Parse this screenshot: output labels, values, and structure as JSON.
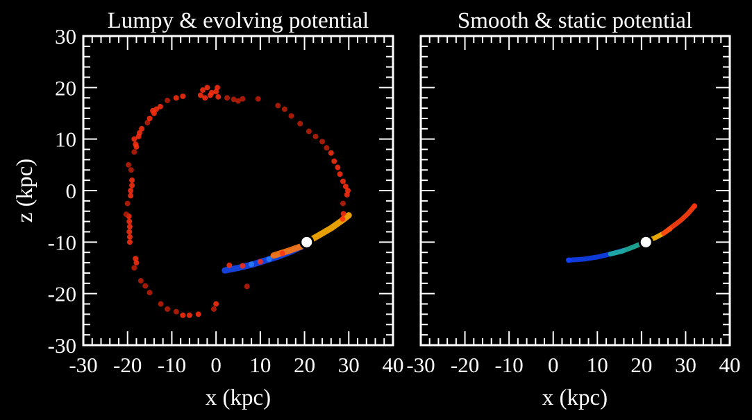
{
  "chart_data": [
    {
      "type": "scatter",
      "title": "Lumpy & evolving potential",
      "xlabel": "x (kpc)",
      "ylabel": "z (kpc)",
      "xlim": [
        -30,
        40
      ],
      "ylim": [
        -30,
        30
      ],
      "xticks": [
        "-30",
        "-20",
        "-10",
        "0",
        "10",
        "20",
        "30",
        "40"
      ],
      "yticks": [
        "30",
        "20",
        "10",
        "0",
        "-10",
        "-20",
        "-30"
      ],
      "grid": false,
      "colors": {
        "red": "#ff3010",
        "darkred": "#c02008",
        "blue": "#1040ff",
        "lightblue": "#2a7fff",
        "teal": "#20c0a0",
        "orange": "#ff9000",
        "yellow": "#ffc800"
      },
      "stream": [
        {
          "x": [
            2,
            5,
            8,
            11,
            14,
            17,
            19.5
          ],
          "z": [
            -15.5,
            -15,
            -14.4,
            -13.6,
            -12.8,
            -11.8,
            -10.8
          ],
          "color": "#1848f0"
        },
        {
          "x": [
            13,
            16,
            19,
            20.5
          ],
          "z": [
            -12.6,
            -11.8,
            -10.9,
            -10.3
          ],
          "color": "#ff7a10"
        },
        {
          "x": [
            20.5,
            23,
            26,
            28.5,
            30
          ],
          "z": [
            -10,
            -8.8,
            -7.3,
            -5.8,
            -4.8
          ],
          "color": "#ffb000"
        }
      ],
      "points": [
        [
          0,
          -22,
          "red"
        ],
        [
          -0.5,
          -23,
          "darkred"
        ],
        [
          -4,
          -24,
          "red"
        ],
        [
          -6,
          -24.2,
          "red"
        ],
        [
          -7.5,
          -24.2,
          "red"
        ],
        [
          -9,
          -23.5,
          "darkred"
        ],
        [
          -11,
          -23,
          "darkred"
        ],
        [
          -12.5,
          -22,
          "darkred"
        ],
        [
          -15,
          -19.8,
          "darkred"
        ],
        [
          -16,
          -18.5,
          "darkred"
        ],
        [
          -17,
          -17.5,
          "darkred"
        ],
        [
          -18.5,
          -15,
          "darkred"
        ],
        [
          -18,
          -14,
          "red"
        ],
        [
          -18.2,
          -13.2,
          "red"
        ],
        [
          -19.5,
          -10,
          "red"
        ],
        [
          -19.5,
          -9,
          "red"
        ],
        [
          -19.6,
          -8,
          "red"
        ],
        [
          -19.5,
          -7,
          "red"
        ],
        [
          -19.6,
          -6,
          "red"
        ],
        [
          -19.7,
          -5,
          "red"
        ],
        [
          -20.3,
          -4.6,
          "darkred"
        ],
        [
          -20,
          -2.5,
          "darkred"
        ],
        [
          -19.3,
          -1,
          "red"
        ],
        [
          -19.3,
          0,
          "red"
        ],
        [
          -19,
          1,
          "red"
        ],
        [
          -19,
          2,
          "red"
        ],
        [
          -19.2,
          4,
          "darkred"
        ],
        [
          -19.8,
          5,
          "darkred"
        ],
        [
          -18.5,
          7.5,
          "darkred"
        ],
        [
          -18,
          8.5,
          "red"
        ],
        [
          -18.5,
          10,
          "red"
        ],
        [
          -17.5,
          10.5,
          "red"
        ],
        [
          -17.3,
          11.2,
          "red"
        ],
        [
          -16.8,
          12,
          "red"
        ],
        [
          -18.2,
          9,
          "red"
        ],
        [
          -15.5,
          13.2,
          "darkred"
        ],
        [
          -15,
          14,
          "red"
        ],
        [
          -14,
          15,
          "red"
        ],
        [
          -13.5,
          15.8,
          "red"
        ],
        [
          -12.6,
          16.3,
          "red"
        ],
        [
          -14.3,
          15.5,
          "red"
        ],
        [
          -11,
          17.5,
          "darkred"
        ],
        [
          -9,
          18,
          "red"
        ],
        [
          -7.5,
          18.3,
          "red"
        ],
        [
          -3.5,
          18.5,
          "red"
        ],
        [
          -3,
          19.5,
          "red"
        ],
        [
          -2,
          20,
          "red"
        ],
        [
          -1,
          19,
          "red"
        ],
        [
          0,
          19.2,
          "red"
        ],
        [
          0.5,
          18.2,
          "red"
        ],
        [
          -2.5,
          18,
          "red"
        ],
        [
          -1.3,
          18.5,
          "red"
        ],
        [
          0.3,
          20,
          "red"
        ],
        [
          2.5,
          18,
          "darkred"
        ],
        [
          4,
          17.7,
          "darkred"
        ],
        [
          5,
          17.4,
          "darkred"
        ],
        [
          6,
          17.8,
          "darkred"
        ],
        [
          9.5,
          17.8,
          "darkred"
        ],
        [
          14,
          16.5,
          "darkred"
        ],
        [
          15.5,
          15.8,
          "darkred"
        ],
        [
          17,
          14.5,
          "darkred"
        ],
        [
          19,
          13,
          "darkred"
        ],
        [
          21,
          11.5,
          "darkred"
        ],
        [
          22.5,
          10.5,
          "darkred"
        ],
        [
          24,
          9.5,
          "darkred"
        ],
        [
          25,
          8.3,
          "darkred"
        ],
        [
          26,
          7.3,
          "red"
        ],
        [
          26.7,
          5.7,
          "red"
        ],
        [
          27.5,
          4.5,
          "red"
        ],
        [
          28,
          3.2,
          "red"
        ],
        [
          28.7,
          1.8,
          "red"
        ],
        [
          29.3,
          0.8,
          "red"
        ],
        [
          29.8,
          0,
          "red"
        ],
        [
          29.6,
          -0.8,
          "red"
        ],
        [
          28.7,
          -2.5,
          "darkred"
        ],
        [
          28.8,
          -4.5,
          "red"
        ],
        [
          28.6,
          -5.5,
          "red"
        ],
        [
          7,
          -18.6,
          "darkred"
        ],
        [
          3,
          -14.5,
          "red"
        ],
        [
          6,
          -14.6,
          "red"
        ],
        [
          10,
          -13.8,
          "red"
        ],
        [
          15,
          -12.2,
          "red"
        ],
        [
          8,
          -14.3,
          "lightblue"
        ],
        [
          12,
          -13.3,
          "lightblue"
        ]
      ],
      "progenitor": {
        "x": 20.5,
        "z": -10
      }
    },
    {
      "type": "scatter",
      "title": "Smooth & static potential",
      "xlabel": "x (kpc)",
      "xlim": [
        -30,
        40
      ],
      "ylim": [
        -30,
        30
      ],
      "xticks": [
        "-30",
        "-20",
        "-10",
        "0",
        "10",
        "20",
        "30",
        "40"
      ],
      "grid": false,
      "stream": [
        {
          "x": [
            3.5,
            7,
            10,
            13,
            16
          ],
          "z": [
            -13.5,
            -13.3,
            -12.9,
            -12.3,
            -11.6
          ],
          "color": "#1040f0"
        },
        {
          "x": [
            13,
            15.5,
            18,
            20.5
          ],
          "z": [
            -12.3,
            -11.8,
            -11,
            -10.1
          ],
          "color": "#20b0a0"
        },
        {
          "x": [
            20.5,
            23,
            25,
            26.5
          ],
          "z": [
            -10,
            -9.2,
            -8.3,
            -7.4
          ],
          "color": "#ffb800"
        },
        {
          "x": [
            25,
            27,
            29,
            30.5,
            32
          ],
          "z": [
            -8.3,
            -7,
            -5.7,
            -4.5,
            -3
          ],
          "color": "#ff4010"
        }
      ],
      "points": [
        [
          3.5,
          -13.5,
          "blue"
        ],
        [
          32,
          -3,
          "red"
        ]
      ],
      "progenitor": {
        "x": 21,
        "z": -10
      }
    }
  ]
}
